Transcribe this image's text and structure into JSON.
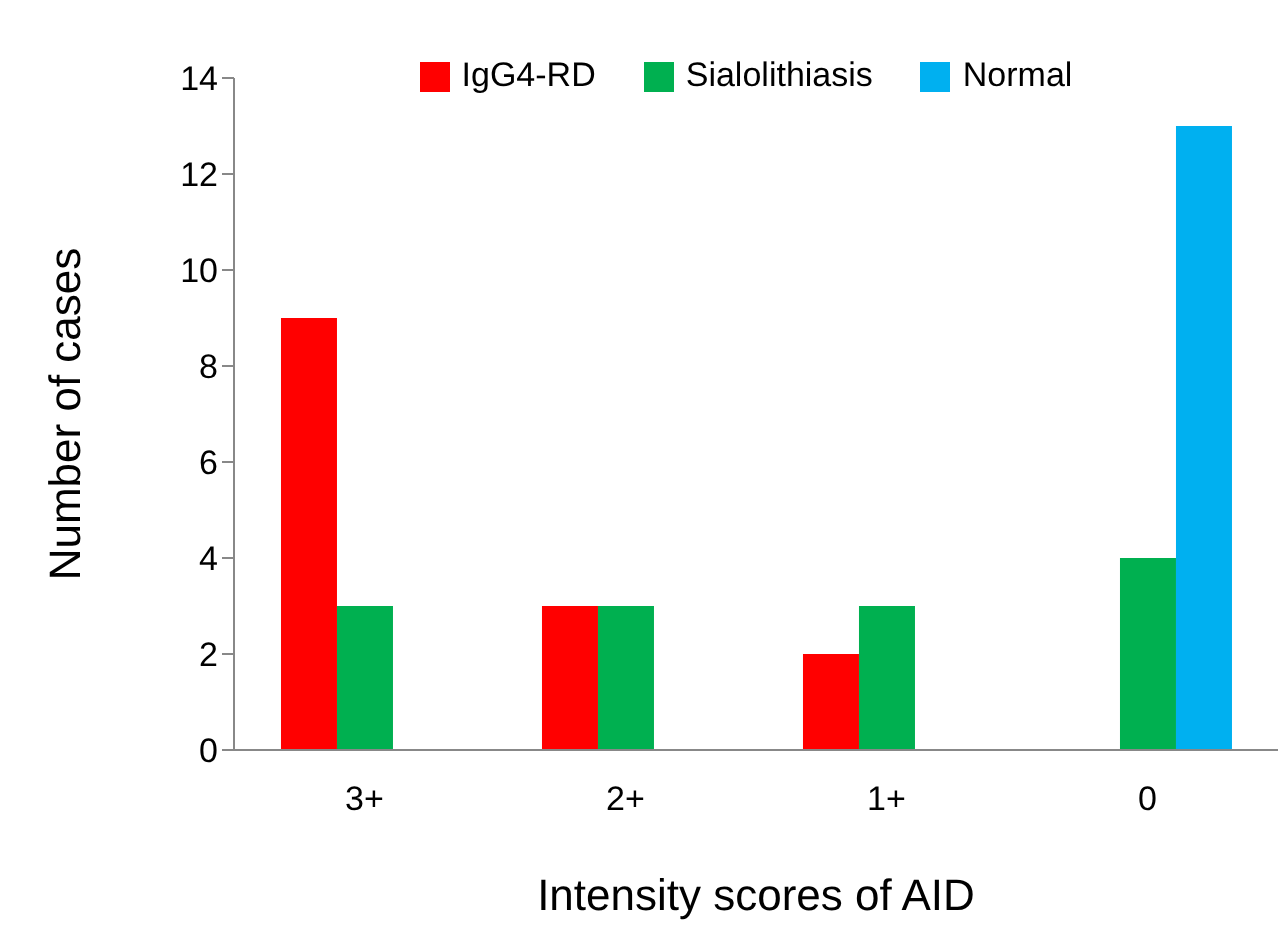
{
  "chart_data": {
    "type": "bar",
    "xlabel": "Intensity scores of AID",
    "ylabel": "Number of cases",
    "categories": [
      "3+",
      "2+",
      "1+",
      "0"
    ],
    "series": [
      {
        "name": "IgG4-RD",
        "color": "#ff0000",
        "values": [
          9,
          3,
          2,
          0
        ]
      },
      {
        "name": "Sialolithiasis",
        "color": "#00b050",
        "values": [
          3,
          3,
          3,
          4
        ]
      },
      {
        "name": "Normal",
        "color": "#00b0f0",
        "values": [
          0,
          0,
          0,
          13
        ]
      }
    ],
    "ylim": [
      0,
      14
    ],
    "yticks": [
      0,
      2,
      4,
      6,
      8,
      10,
      12,
      14
    ],
    "legend": "top"
  }
}
